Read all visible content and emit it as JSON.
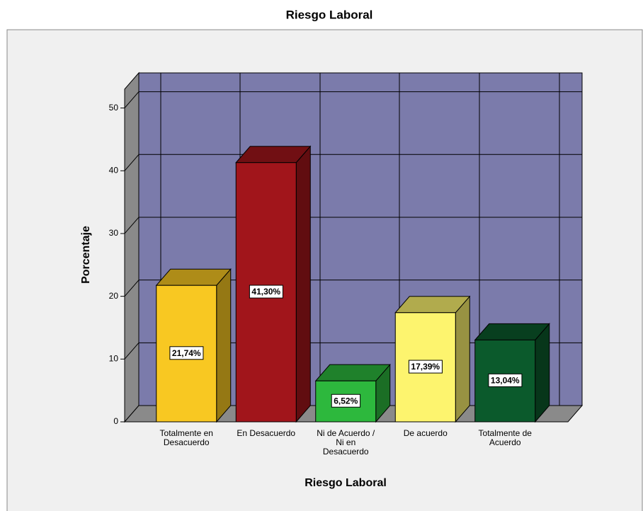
{
  "chart_data": {
    "type": "bar3d",
    "title": "Riesgo Laboral",
    "x_label": "Riesgo Laboral",
    "y_label": "Porcentaje",
    "categories": [
      "Totalmente en\nDesacuerdo",
      "En Desacuerdo",
      "Ni de Acuerdo /\nNi en\nDesacuerdo",
      "De acuerdo",
      "Totalmente de\nAcuerdo"
    ],
    "values": [
      21.74,
      41.3,
      6.52,
      17.39,
      13.04
    ],
    "value_labels": [
      "21,74%",
      "41,30%",
      "6,52%",
      "17,39%",
      "13,04%"
    ],
    "colors": [
      "#f8c822",
      "#a1151b",
      "#2db83d",
      "#fdf46e",
      "#0b5a2c"
    ],
    "ylim": [
      0,
      53
    ],
    "yticks": [
      0,
      10,
      20,
      30,
      40,
      50
    ],
    "grid": true
  }
}
